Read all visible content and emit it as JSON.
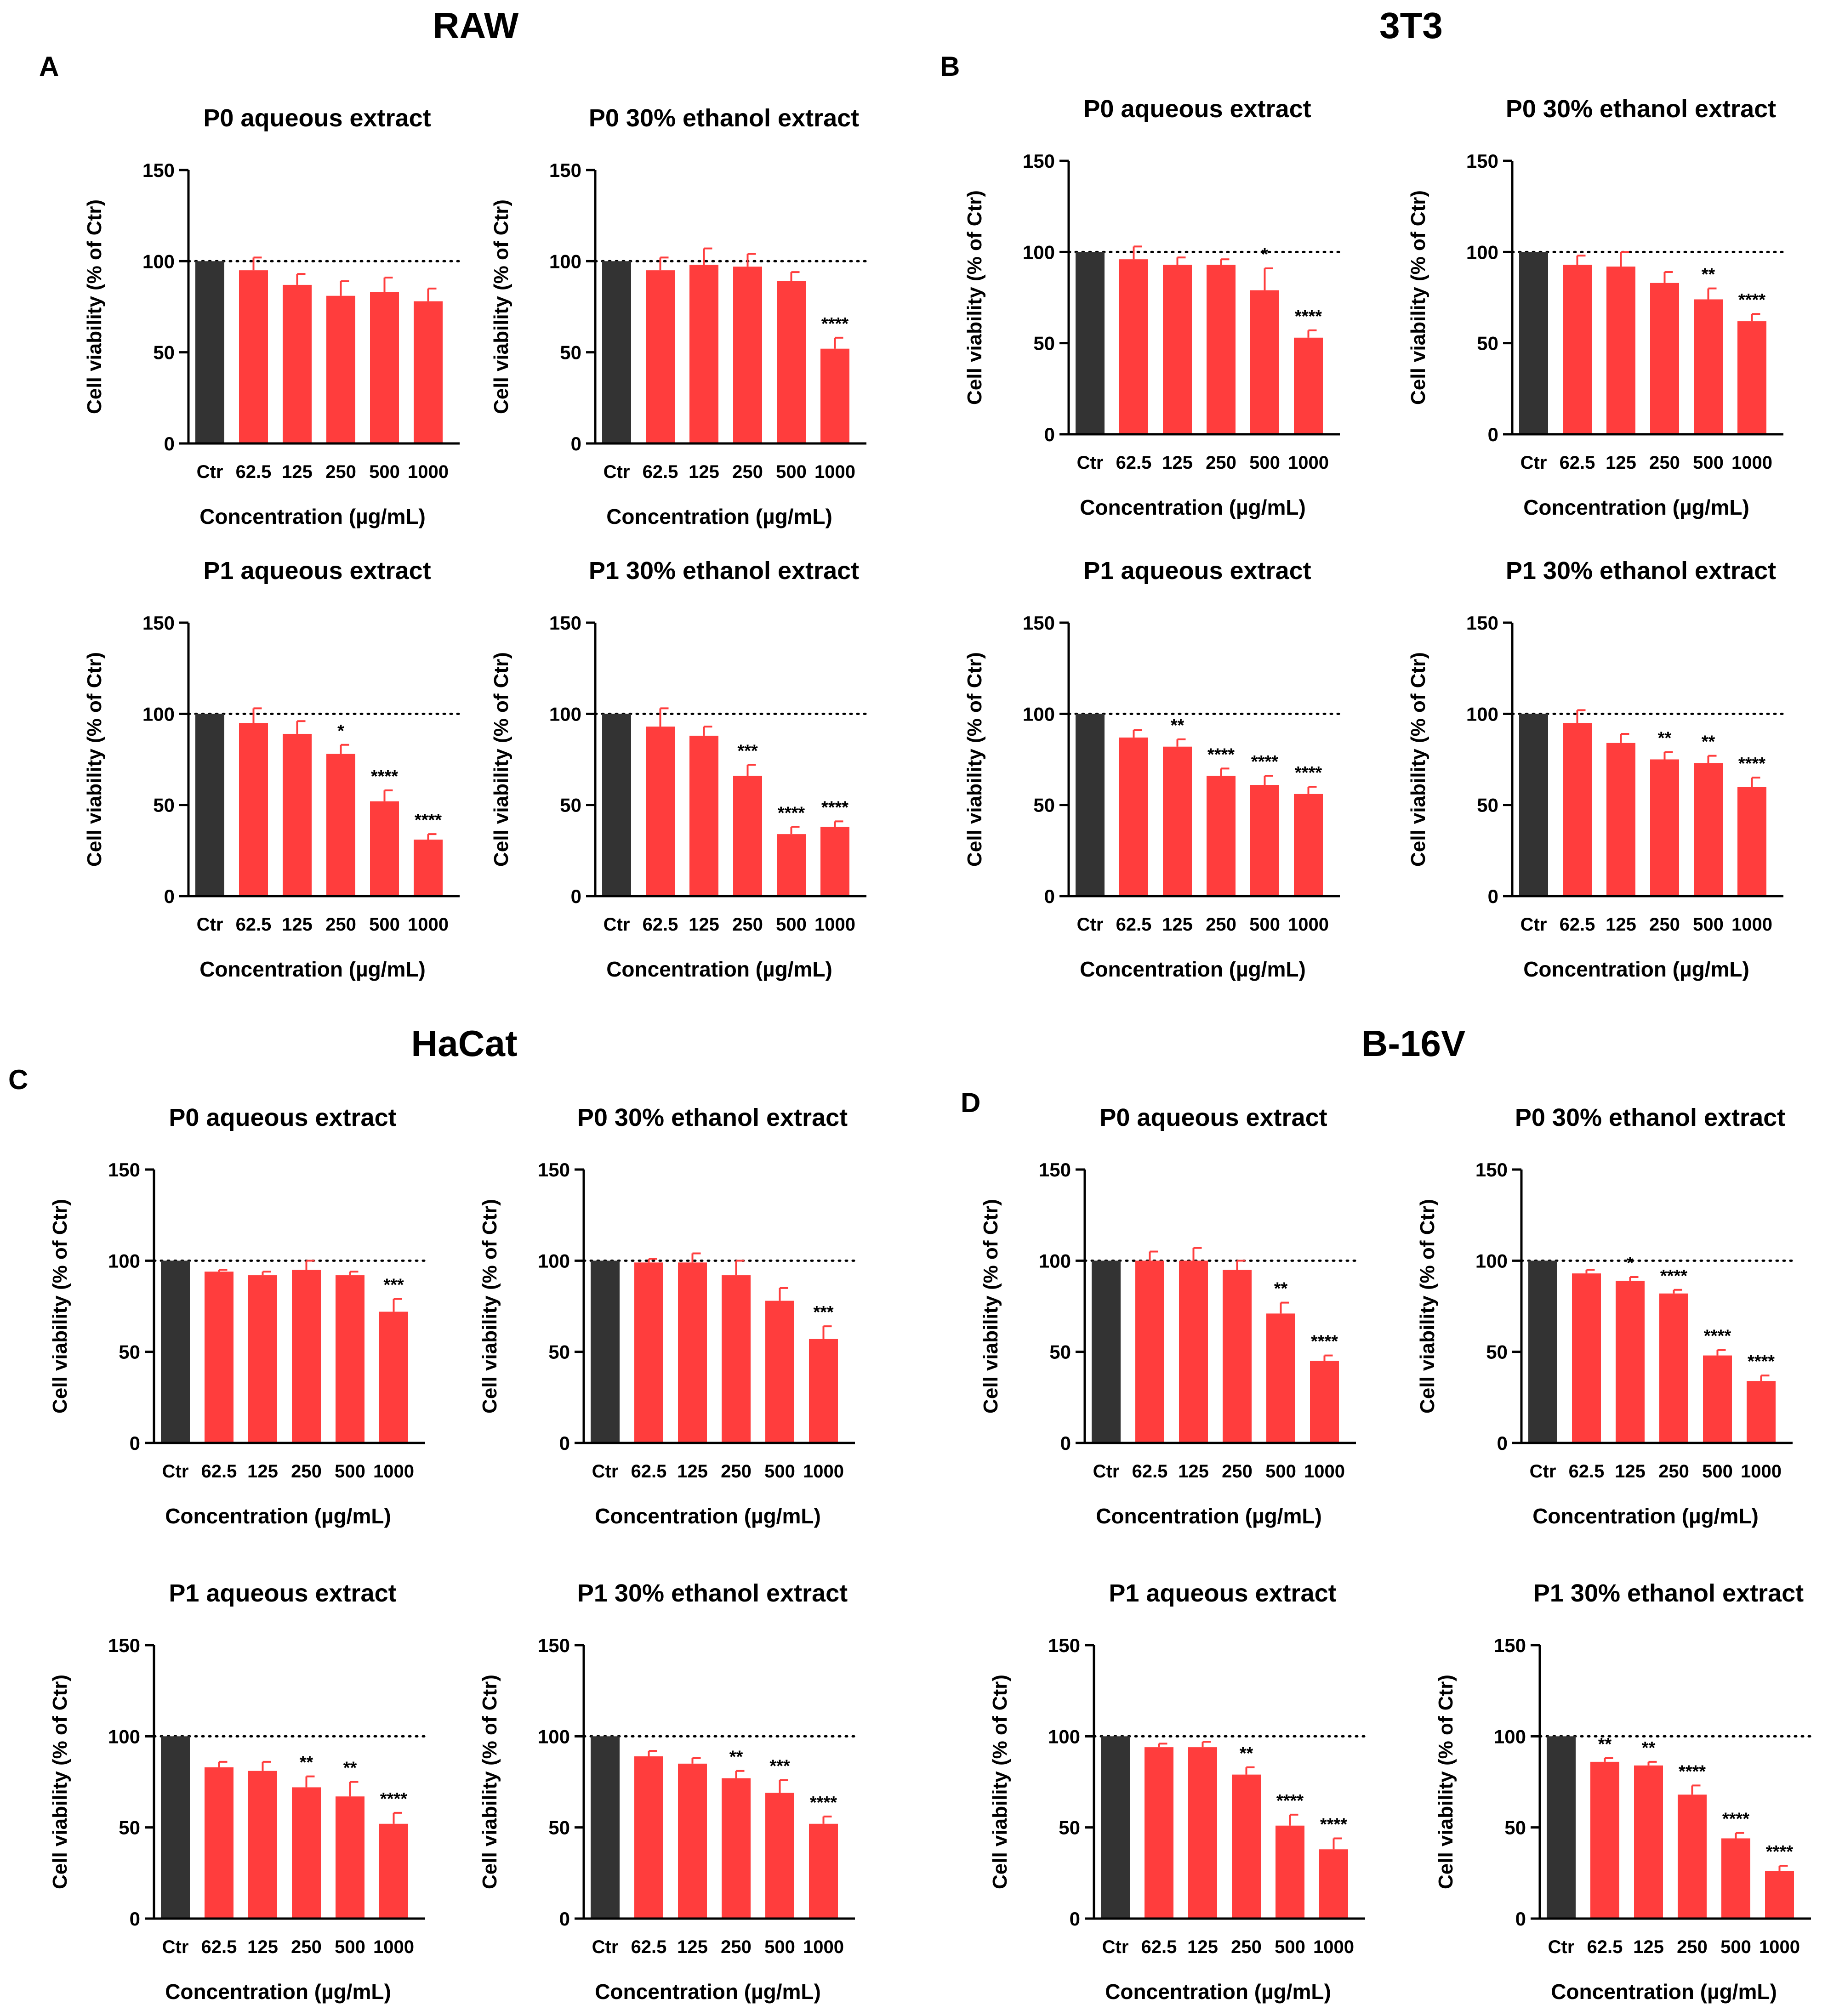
{
  "figure": {
    "x_label": "Concentration (µg/mL)",
    "y_label": "Cell viability (% of Ctr)",
    "categories": [
      "Ctr",
      "62.5",
      "125",
      "250",
      "500",
      "1000"
    ],
    "y_ticks": [
      0,
      50,
      100,
      150
    ],
    "colors": {
      "control": "#333333",
      "treated": "#ff3d3d",
      "axis": "#000000"
    },
    "panel_titles": [
      "P0 aqueous extract",
      "P0 30% ethanol extract",
      "P1 aqueous extract",
      "P1 30% ethanol extract"
    ]
  },
  "groups": [
    {
      "letter": "A",
      "cell_line": "RAW"
    },
    {
      "letter": "B",
      "cell_line": "3T3"
    },
    {
      "letter": "C",
      "cell_line": "HaCat"
    },
    {
      "letter": "D",
      "cell_line": "B-16V"
    }
  ],
  "chart_data": [
    {
      "type": "bar",
      "cell_line": "RAW",
      "title": "P0 aqueous extract",
      "xlabel": "Concentration (µg/mL)",
      "ylabel": "Cell viability (% of Ctr)",
      "ylim": [
        0,
        150
      ],
      "reference_line": 100,
      "categories": [
        "Ctr",
        "62.5",
        "125",
        "250",
        "500",
        "1000"
      ],
      "values": [
        100,
        95,
        87,
        81,
        83,
        78
      ],
      "errors": [
        0,
        7,
        6,
        8,
        8,
        7
      ],
      "significance": [
        "",
        "",
        "",
        "",
        "",
        ""
      ]
    },
    {
      "type": "bar",
      "cell_line": "RAW",
      "title": "P0 30% ethanol extract",
      "xlabel": "Concentration (µg/mL)",
      "ylabel": "Cell viability (% of Ctr)",
      "ylim": [
        0,
        150
      ],
      "reference_line": 100,
      "categories": [
        "Ctr",
        "62.5",
        "125",
        "250",
        "500",
        "1000"
      ],
      "values": [
        100,
        95,
        98,
        97,
        89,
        52
      ],
      "errors": [
        0,
        7,
        9,
        7,
        5,
        6
      ],
      "significance": [
        "",
        "",
        "",
        "",
        "",
        "****"
      ]
    },
    {
      "type": "bar",
      "cell_line": "RAW",
      "title": "P1 aqueous extract",
      "xlabel": "Concentration (µg/mL)",
      "ylabel": "Cell viability (% of Ctr)",
      "ylim": [
        0,
        150
      ],
      "reference_line": 100,
      "categories": [
        "Ctr",
        "62.5",
        "125",
        "250",
        "500",
        "1000"
      ],
      "values": [
        100,
        95,
        89,
        78,
        52,
        31
      ],
      "errors": [
        0,
        8,
        7,
        5,
        6,
        3
      ],
      "significance": [
        "",
        "",
        "",
        "*",
        "****",
        "****"
      ]
    },
    {
      "type": "bar",
      "cell_line": "RAW",
      "title": "P1 30% ethanol extract",
      "xlabel": "Concentration (µg/mL)",
      "ylabel": "Cell viability (% of Ctr)",
      "ylim": [
        0,
        150
      ],
      "reference_line": 100,
      "categories": [
        "Ctr",
        "62.5",
        "125",
        "250",
        "500",
        "1000"
      ],
      "values": [
        100,
        93,
        88,
        66,
        34,
        38
      ],
      "errors": [
        0,
        10,
        5,
        6,
        4,
        3
      ],
      "significance": [
        "",
        "",
        "",
        "***",
        "****",
        "****"
      ]
    },
    {
      "type": "bar",
      "cell_line": "3T3",
      "title": "P0 aqueous extract",
      "xlabel": "Concentration (µg/mL)",
      "ylabel": "Cell viability (% of Ctr)",
      "ylim": [
        0,
        150
      ],
      "reference_line": 100,
      "categories": [
        "Ctr",
        "62.5",
        "125",
        "250",
        "500",
        "1000"
      ],
      "values": [
        100,
        96,
        93,
        93,
        79,
        53
      ],
      "errors": [
        0,
        7,
        4,
        3,
        12,
        4
      ],
      "significance": [
        "",
        "",
        "",
        "",
        "*",
        "****"
      ]
    },
    {
      "type": "bar",
      "cell_line": "3T3",
      "title": "P0 30% ethanol extract",
      "xlabel": "Concentration (µg/mL)",
      "ylabel": "Cell viability (% of Ctr)",
      "ylim": [
        0,
        150
      ],
      "reference_line": 100,
      "categories": [
        "Ctr",
        "62.5",
        "125",
        "250",
        "500",
        "1000"
      ],
      "values": [
        100,
        93,
        92,
        83,
        74,
        62
      ],
      "errors": [
        0,
        5,
        8,
        6,
        6,
        4
      ],
      "significance": [
        "",
        "",
        "",
        "",
        "**",
        "****"
      ]
    },
    {
      "type": "bar",
      "cell_line": "3T3",
      "title": "P1 aqueous extract",
      "xlabel": "Concentration (µg/mL)",
      "ylabel": "Cell viability (% of Ctr)",
      "ylim": [
        0,
        150
      ],
      "reference_line": 100,
      "categories": [
        "Ctr",
        "62.5",
        "125",
        "250",
        "500",
        "1000"
      ],
      "values": [
        100,
        87,
        82,
        66,
        61,
        56
      ],
      "errors": [
        0,
        4,
        4,
        4,
        5,
        4
      ],
      "significance": [
        "",
        "",
        "**",
        "****",
        "****",
        "****"
      ]
    },
    {
      "type": "bar",
      "cell_line": "3T3",
      "title": "P1 30% ethanol extract",
      "xlabel": "Concentration (µg/mL)",
      "ylabel": "Cell viability (% of Ctr)",
      "ylim": [
        0,
        150
      ],
      "reference_line": 100,
      "categories": [
        "Ctr",
        "62.5",
        "125",
        "250",
        "500",
        "1000"
      ],
      "values": [
        100,
        95,
        84,
        75,
        73,
        60
      ],
      "errors": [
        0,
        7,
        5,
        4,
        4,
        5
      ],
      "significance": [
        "",
        "",
        "",
        "**",
        "**",
        "****"
      ]
    },
    {
      "type": "bar",
      "cell_line": "HaCat",
      "title": "P0 aqueous extract",
      "xlabel": "Concentration (µg/mL)",
      "ylabel": "Cell viability (% of Ctr)",
      "ylim": [
        0,
        150
      ],
      "reference_line": 100,
      "categories": [
        "Ctr",
        "62.5",
        "125",
        "250",
        "500",
        "1000"
      ],
      "values": [
        100,
        94,
        92,
        95,
        92,
        72
      ],
      "errors": [
        0,
        1,
        2,
        5,
        2,
        7
      ],
      "significance": [
        "",
        "",
        "",
        "",
        "",
        "***"
      ]
    },
    {
      "type": "bar",
      "cell_line": "HaCat",
      "title": "P0 30% ethanol extract",
      "xlabel": "Concentration (µg/mL)",
      "ylabel": "Cell viability (% of Ctr)",
      "ylim": [
        0,
        150
      ],
      "reference_line": 100,
      "categories": [
        "Ctr",
        "62.5",
        "125",
        "250",
        "500",
        "1000"
      ],
      "values": [
        100,
        99,
        99,
        92,
        78,
        57
      ],
      "errors": [
        0,
        2,
        5,
        8,
        7,
        7
      ],
      "significance": [
        "",
        "",
        "",
        "",
        "",
        "***"
      ]
    },
    {
      "type": "bar",
      "cell_line": "HaCat",
      "title": "P1 aqueous extract",
      "xlabel": "Concentration (µg/mL)",
      "ylabel": "Cell viability (% of Ctr)",
      "ylim": [
        0,
        150
      ],
      "reference_line": 100,
      "categories": [
        "Ctr",
        "62.5",
        "125",
        "250",
        "500",
        "1000"
      ],
      "values": [
        100,
        83,
        81,
        72,
        67,
        52
      ],
      "errors": [
        0,
        3,
        5,
        6,
        8,
        6
      ],
      "significance": [
        "",
        "",
        "",
        "**",
        "**",
        "****"
      ]
    },
    {
      "type": "bar",
      "cell_line": "HaCat",
      "title": "P1 30% ethanol extract",
      "xlabel": "Concentration (µg/mL)",
      "ylabel": "Cell viability (% of Ctr)",
      "ylim": [
        0,
        150
      ],
      "reference_line": 100,
      "categories": [
        "Ctr",
        "62.5",
        "125",
        "250",
        "500",
        "1000"
      ],
      "values": [
        100,
        89,
        85,
        77,
        69,
        52
      ],
      "errors": [
        0,
        3,
        3,
        4,
        7,
        4
      ],
      "significance": [
        "",
        "",
        "",
        "**",
        "***",
        "****"
      ]
    },
    {
      "type": "bar",
      "cell_line": "B-16V",
      "title": "P0 aqueous extract",
      "xlabel": "Concentration (µg/mL)",
      "ylabel": "Cell viability (% of Ctr)",
      "ylim": [
        0,
        150
      ],
      "reference_line": 100,
      "categories": [
        "Ctr",
        "62.5",
        "125",
        "250",
        "500",
        "1000"
      ],
      "values": [
        100,
        100,
        100,
        95,
        71,
        45
      ],
      "errors": [
        0,
        5,
        7,
        5,
        6,
        3
      ],
      "significance": [
        "",
        "",
        "",
        "",
        "**",
        "****"
      ]
    },
    {
      "type": "bar",
      "cell_line": "B-16V",
      "title": "P0 30% ethanol extract",
      "xlabel": "Concentration (µg/mL)",
      "ylabel": "Cell viability (% of Ctr)",
      "ylim": [
        0,
        150
      ],
      "reference_line": 100,
      "categories": [
        "Ctr",
        "62.5",
        "125",
        "250",
        "500",
        "1000"
      ],
      "values": [
        100,
        93,
        89,
        82,
        48,
        34
      ],
      "errors": [
        0,
        2,
        2,
        2,
        3,
        3
      ],
      "significance": [
        "",
        "",
        "*",
        "****",
        "****",
        "****"
      ]
    },
    {
      "type": "bar",
      "cell_line": "B-16V",
      "title": "P1 aqueous extract",
      "xlabel": "Concentration (µg/mL)",
      "ylabel": "Cell viability (% of Ctr)",
      "ylim": [
        0,
        150
      ],
      "reference_line": 100,
      "categories": [
        "Ctr",
        "62.5",
        "125",
        "250",
        "500",
        "1000"
      ],
      "values": [
        100,
        94,
        94,
        79,
        51,
        38
      ],
      "errors": [
        0,
        2,
        3,
        4,
        6,
        6
      ],
      "significance": [
        "",
        "",
        "",
        "**",
        "****",
        "****"
      ]
    },
    {
      "type": "bar",
      "cell_line": "B-16V",
      "title": "P1 30% ethanol extract",
      "xlabel": "Concentration (µg/mL)",
      "ylabel": "Cell viability (% of Ctr)",
      "ylim": [
        0,
        150
      ],
      "reference_line": 100,
      "categories": [
        "Ctr",
        "62.5",
        "125",
        "250",
        "500",
        "1000"
      ],
      "values": [
        100,
        86,
        84,
        68,
        44,
        26
      ],
      "errors": [
        0,
        2,
        2,
        5,
        3,
        3
      ],
      "significance": [
        "",
        "**",
        "**",
        "****",
        "****",
        "****"
      ]
    }
  ]
}
